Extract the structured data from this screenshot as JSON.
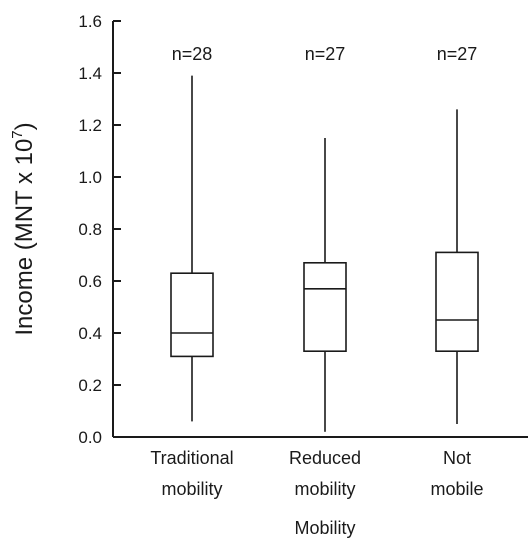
{
  "chart_data": {
    "type": "box",
    "title": "",
    "xlabel": "Mobility",
    "ylabel": "Income (MNT x 10",
    "ylabel_superscript": "7",
    "ylabel_close": ")",
    "ylim": [
      0.0,
      1.6
    ],
    "yticks": [
      "0.0",
      "0.2",
      "0.4",
      "0.6",
      "0.8",
      "1.0",
      "1.2",
      "1.4",
      "1.6"
    ],
    "grid": false,
    "categories": [
      {
        "line1": "Traditional",
        "line2": "mobility"
      },
      {
        "line1": "Reduced",
        "line2": "mobility"
      },
      {
        "line1": "Not",
        "line2": "mobile"
      }
    ],
    "boxes": [
      {
        "n_label": "n=28",
        "whisker_low": 0.06,
        "q1": 0.31,
        "median": 0.4,
        "q3": 0.63,
        "whisker_high": 1.39
      },
      {
        "n_label": "n=27",
        "whisker_low": 0.02,
        "q1": 0.33,
        "median": 0.57,
        "q3": 0.67,
        "whisker_high": 1.15
      },
      {
        "n_label": "n=27",
        "whisker_low": 0.05,
        "q1": 0.33,
        "median": 0.45,
        "q3": 0.71,
        "whisker_high": 1.26
      }
    ]
  }
}
